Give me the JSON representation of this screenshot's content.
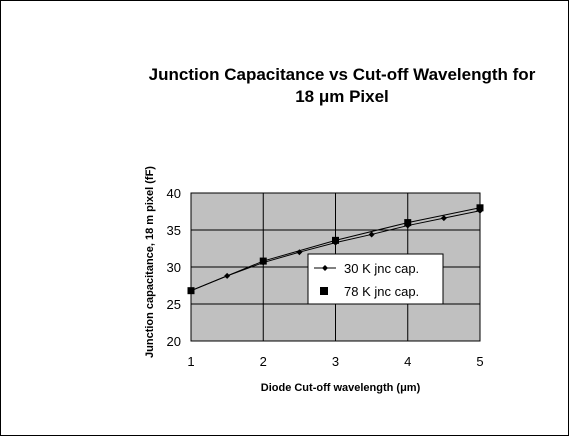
{
  "chart_data": {
    "type": "line",
    "title": "Junction Capacitance vs Cut-off Wavelength for\n18 μm Pixel",
    "xlabel": "Diode Cut-off wavelength (μm)",
    "ylabel": "Junction capacitance, 18   m pixel (fF)",
    "xlim": [
      1,
      5
    ],
    "ylim": [
      20,
      40
    ],
    "xticks": [
      "1",
      "2",
      "3",
      "4",
      "5"
    ],
    "yticks": [
      "20",
      "25",
      "30",
      "35",
      "40"
    ],
    "grid": true,
    "plot_background": "#c0c0c0",
    "legend_position": "center-right",
    "series": [
      {
        "name": "30 K jnc cap.",
        "marker": "diamond",
        "color": "#000000",
        "x": [
          1,
          1.5,
          2,
          2.5,
          3,
          3.5,
          4,
          4.5,
          5
        ],
        "y": [
          26.8,
          28.8,
          30.6,
          32.0,
          33.3,
          34.4,
          35.6,
          36.6,
          37.6
        ]
      },
      {
        "name": "78 K jnc cap.",
        "marker": "square",
        "color": "#000000",
        "x": [
          1,
          2,
          3,
          4,
          5
        ],
        "y": [
          26.8,
          30.8,
          33.6,
          36.0,
          38.0
        ]
      }
    ]
  }
}
